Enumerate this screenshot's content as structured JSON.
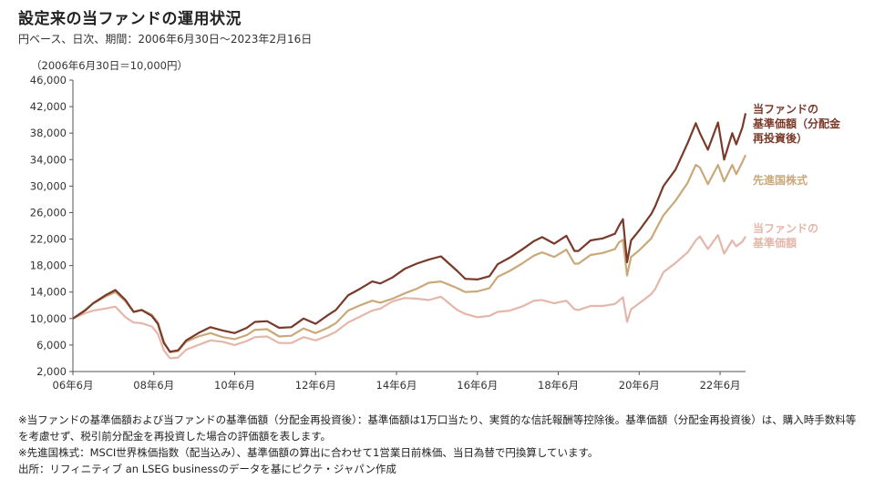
{
  "title": "設定来の当ファンドの運用状況",
  "subtitle": "円ベース、日次、期間：2006年6月30日～2023年2月16日",
  "notes": [
    "※当ファンドの基準価額および当ファンドの基準価額（分配金再投資後）：基準価額は1万口当たり、実質的な信託報酬等控除後。基準価額（分配金再投資後）は、購入時手数料等を考慮せず、税引前分配金を再投資した場合の評価額を表します。",
    "※先進国株式：MSCI世界株価指数（配当込み）、基準価額の算出に合わせて1営業日前株価、当日為替で円換算しています。",
    "出所：リフィニティブ an LSEG businessのデータを基にピクテ・ジャパン作成"
  ],
  "chart_data": {
    "type": "line",
    "unit_note": "（2006年6月30日＝10,000円）",
    "ylim": [
      2000,
      46000
    ],
    "yticks": [
      2000,
      6000,
      10000,
      14000,
      18000,
      22000,
      26000,
      30000,
      34000,
      38000,
      42000,
      46000
    ],
    "ytick_labels": [
      "2,000",
      "6,000",
      "10,000",
      "14,000",
      "18,000",
      "22,000",
      "26,000",
      "30,000",
      "34,000",
      "38,000",
      "42,000",
      "46,000"
    ],
    "xlim": [
      2006.5,
      2023.13
    ],
    "xticks": [
      2006.5,
      2008.5,
      2010.5,
      2012.5,
      2014.5,
      2016.5,
      2018.5,
      2020.5,
      2022.5
    ],
    "xtick_labels": [
      "06年6月",
      "08年6月",
      "10年6月",
      "12年6月",
      "14年6月",
      "16年6月",
      "18年6月",
      "20年6月",
      "22年6月"
    ],
    "grid": false,
    "series": [
      {
        "name": "当ファンドの基準価額（分配金再投資後）",
        "label_lines": [
          "当ファンドの",
          "基準価額（分配金",
          "再投資後）"
        ],
        "color": "#7a3a2a",
        "x": [
          2006.5,
          2006.8,
          2007.0,
          2007.3,
          2007.55,
          2007.8,
          2008.0,
          2008.2,
          2008.45,
          2008.6,
          2008.75,
          2008.9,
          2009.1,
          2009.3,
          2009.6,
          2009.9,
          2010.2,
          2010.5,
          2010.8,
          2011.0,
          2011.3,
          2011.6,
          2011.9,
          2012.2,
          2012.5,
          2012.8,
          2013.0,
          2013.3,
          2013.6,
          2013.9,
          2014.1,
          2014.4,
          2014.7,
          2015.0,
          2015.3,
          2015.6,
          2015.8,
          2016.0,
          2016.2,
          2016.5,
          2016.8,
          2017.0,
          2017.3,
          2017.6,
          2017.9,
          2018.1,
          2018.4,
          2018.7,
          2018.9,
          2019.0,
          2019.3,
          2019.6,
          2019.9,
          2020.0,
          2020.1,
          2020.2,
          2020.3,
          2020.5,
          2020.8,
          2020.9,
          2021.1,
          2021.4,
          2021.7,
          2021.9,
          2022.0,
          2022.2,
          2022.45,
          2022.6,
          2022.8,
          2022.9,
          2023.05,
          2023.13
        ],
        "values": [
          10000,
          11200,
          12300,
          13500,
          14300,
          12800,
          11000,
          11300,
          10400,
          9200,
          6300,
          5000,
          5200,
          6700,
          7800,
          8700,
          8200,
          7800,
          8600,
          9500,
          9600,
          8600,
          8700,
          10000,
          9200,
          10500,
          11300,
          13500,
          14500,
          15600,
          15300,
          16200,
          17500,
          18300,
          18900,
          19400,
          18300,
          17200,
          16000,
          15900,
          16400,
          18200,
          19200,
          20400,
          21700,
          22300,
          21300,
          22500,
          20200,
          20200,
          21800,
          22100,
          22800,
          24000,
          25000,
          18500,
          21800,
          23300,
          25800,
          27000,
          30000,
          32500,
          36500,
          39500,
          38000,
          35500,
          39600,
          34000,
          38000,
          36300,
          38800,
          41000
        ]
      },
      {
        "name": "先進国株式",
        "label_lines": [
          "先進国株式"
        ],
        "color": "#c9a97a",
        "x": [
          2006.5,
          2006.8,
          2007.0,
          2007.3,
          2007.55,
          2007.8,
          2008.0,
          2008.2,
          2008.45,
          2008.6,
          2008.75,
          2008.9,
          2009.1,
          2009.3,
          2009.6,
          2009.9,
          2010.2,
          2010.5,
          2010.8,
          2011.0,
          2011.3,
          2011.6,
          2011.9,
          2012.2,
          2012.5,
          2012.8,
          2013.0,
          2013.3,
          2013.6,
          2013.9,
          2014.1,
          2014.4,
          2014.7,
          2015.0,
          2015.3,
          2015.6,
          2015.8,
          2016.0,
          2016.2,
          2016.5,
          2016.8,
          2017.0,
          2017.3,
          2017.6,
          2017.9,
          2018.1,
          2018.4,
          2018.7,
          2018.9,
          2019.0,
          2019.3,
          2019.6,
          2019.9,
          2020.0,
          2020.1,
          2020.2,
          2020.3,
          2020.5,
          2020.8,
          2020.9,
          2021.1,
          2021.4,
          2021.7,
          2021.9,
          2022.0,
          2022.2,
          2022.45,
          2022.6,
          2022.8,
          2022.9,
          2023.05,
          2023.13
        ],
        "values": [
          10000,
          11300,
          12300,
          13300,
          14000,
          12600,
          11000,
          11300,
          10600,
          9400,
          6500,
          4900,
          5100,
          6500,
          7300,
          7800,
          7200,
          6900,
          7500,
          8300,
          8400,
          7300,
          7400,
          8500,
          7800,
          8600,
          9300,
          11200,
          12000,
          12700,
          12400,
          13000,
          13800,
          14500,
          15400,
          15600,
          15100,
          14600,
          14000,
          14100,
          14600,
          16300,
          17200,
          18300,
          19500,
          20000,
          19300,
          20400,
          18300,
          18300,
          19600,
          19900,
          20500,
          21500,
          21900,
          16500,
          19300,
          20300,
          22100,
          23300,
          25600,
          27800,
          30500,
          33200,
          32800,
          30300,
          33200,
          30700,
          33200,
          31800,
          33600,
          34700
        ]
      },
      {
        "name": "当ファンドの基準価額",
        "label_lines": [
          "当ファンドの",
          "基準価額"
        ],
        "color": "#e4b7aa",
        "x": [
          2006.5,
          2006.8,
          2007.0,
          2007.3,
          2007.55,
          2007.8,
          2008.0,
          2008.2,
          2008.45,
          2008.6,
          2008.75,
          2008.9,
          2009.1,
          2009.3,
          2009.6,
          2009.9,
          2010.2,
          2010.5,
          2010.8,
          2011.0,
          2011.3,
          2011.6,
          2011.9,
          2012.2,
          2012.5,
          2012.8,
          2013.0,
          2013.3,
          2013.6,
          2013.9,
          2014.1,
          2014.4,
          2014.7,
          2015.0,
          2015.3,
          2015.6,
          2015.8,
          2016.0,
          2016.2,
          2016.5,
          2016.8,
          2017.0,
          2017.3,
          2017.6,
          2017.9,
          2018.1,
          2018.4,
          2018.7,
          2018.9,
          2019.0,
          2019.3,
          2019.6,
          2019.9,
          2020.0,
          2020.1,
          2020.2,
          2020.3,
          2020.5,
          2020.8,
          2020.9,
          2021.1,
          2021.4,
          2021.7,
          2021.9,
          2022.0,
          2022.2,
          2022.45,
          2022.6,
          2022.8,
          2022.9,
          2023.05,
          2023.13
        ],
        "values": [
          10000,
          10800,
          11200,
          11500,
          11800,
          10200,
          9400,
          9300,
          8800,
          7700,
          5200,
          4000,
          4100,
          5300,
          6000,
          6700,
          6500,
          6000,
          6600,
          7200,
          7300,
          6300,
          6300,
          7200,
          6700,
          7400,
          8000,
          9400,
          10300,
          11200,
          11500,
          12600,
          13100,
          13000,
          12800,
          13300,
          12300,
          11300,
          10700,
          10200,
          10400,
          11000,
          11200,
          11800,
          12700,
          12800,
          12300,
          12700,
          11400,
          11300,
          11900,
          11900,
          12200,
          12700,
          13200,
          9500,
          11400,
          12300,
          13700,
          14500,
          17000,
          18400,
          20000,
          21800,
          22400,
          20500,
          22600,
          19800,
          21800,
          20900,
          21600,
          22400
        ]
      }
    ]
  }
}
